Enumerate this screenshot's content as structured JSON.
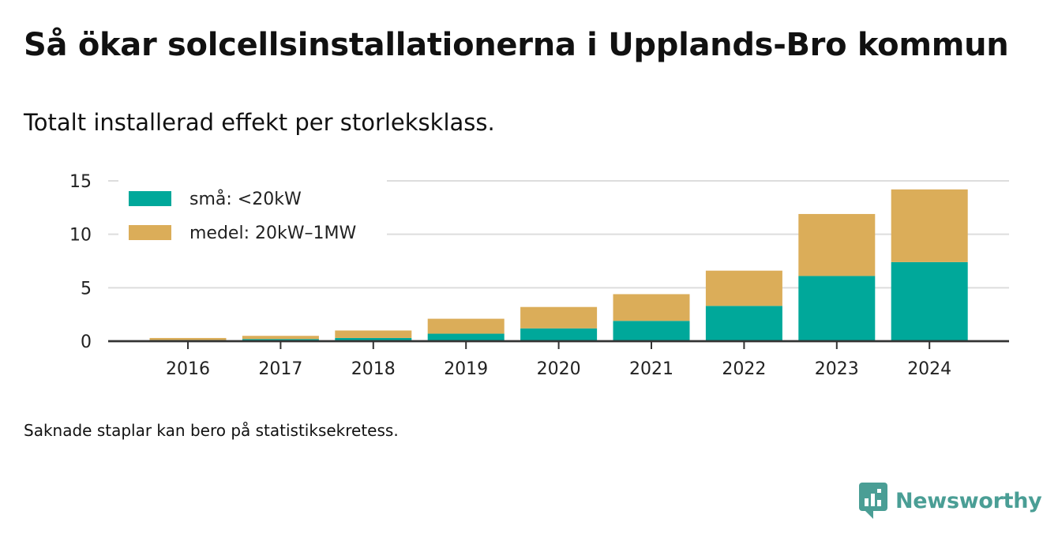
{
  "header": {
    "title": "Så ökar solcellsinstallationerna i Upplands-Bro kommun",
    "subtitle": "Totalt installerad effekt per storleksklass."
  },
  "footnote": "Saknade staplar kan bero på statistiksekretess.",
  "brand": {
    "name": "Newsworthy",
    "icon": "newsworthy-logo-icon",
    "color": "#4a9e95"
  },
  "chart_data": {
    "type": "bar",
    "stacked": true,
    "categories": [
      "2016",
      "2017",
      "2018",
      "2019",
      "2020",
      "2021",
      "2022",
      "2023",
      "2024"
    ],
    "series": [
      {
        "name": "små: <20kW",
        "color": "#00a89a",
        "values": [
          0.1,
          0.2,
          0.3,
          0.7,
          1.2,
          1.9,
          3.3,
          6.1,
          7.4
        ]
      },
      {
        "name": "medel: 20kW–1MW",
        "color": "#dbad59",
        "values": [
          0.2,
          0.3,
          0.7,
          1.4,
          2.0,
          2.5,
          3.3,
          5.8,
          6.8
        ]
      }
    ],
    "ylim": [
      0,
      15
    ],
    "yticks": [
      0,
      5,
      10,
      15
    ],
    "grid": true,
    "legend": "top-left",
    "xlabel": "",
    "ylabel": ""
  }
}
